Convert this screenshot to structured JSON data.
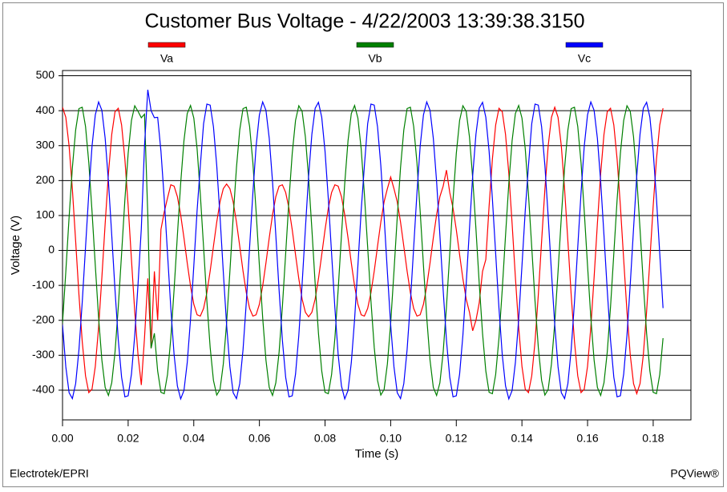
{
  "chart_data": {
    "type": "line",
    "title": "Customer Bus Voltage - 4/22/2003 13:39:38.3150",
    "xlabel": "Time (s)",
    "ylabel": "Voltage (V)",
    "footer_left": "Electrotek/EPRI",
    "footer_right": "PQView®",
    "legend": "top",
    "grid": true,
    "xlim": [
      0,
      0.1915
    ],
    "ylim": [
      -485,
      515
    ],
    "xticks": [
      {
        "value": 0,
        "label": "0.00"
      },
      {
        "value": 0.02,
        "label": "0.02"
      },
      {
        "value": 0.04,
        "label": "0.04"
      },
      {
        "value": 0.06,
        "label": "0.06"
      },
      {
        "value": 0.08,
        "label": "0.08"
      },
      {
        "value": 0.1,
        "label": "0.10"
      },
      {
        "value": 0.12,
        "label": "0.12"
      },
      {
        "value": 0.14,
        "label": "0.14"
      },
      {
        "value": 0.16,
        "label": "0.16"
      },
      {
        "value": 0.18,
        "label": "0.18"
      }
    ],
    "yticks": [
      500,
      400,
      300,
      200,
      100,
      0,
      -100,
      -200,
      -300,
      -400
    ],
    "x": [
      0,
      0.001,
      0.002,
      0.003,
      0.004,
      0.005,
      0.006,
      0.007,
      0.008,
      0.009,
      0.01,
      0.011,
      0.012,
      0.013,
      0.014,
      0.015,
      0.016,
      0.017,
      0.018,
      0.019,
      0.02,
      0.021,
      0.022,
      0.023,
      0.024,
      0.025,
      0.026,
      0.027,
      0.028,
      0.029,
      0.03,
      0.031,
      0.032,
      0.033,
      0.034,
      0.035,
      0.036,
      0.037,
      0.038,
      0.039,
      0.04,
      0.041,
      0.042,
      0.043,
      0.044,
      0.045,
      0.046,
      0.047,
      0.048,
      0.049,
      0.05,
      0.051,
      0.052,
      0.053,
      0.054,
      0.055,
      0.056,
      0.057,
      0.058,
      0.059,
      0.06,
      0.061,
      0.062,
      0.063,
      0.064,
      0.065,
      0.066,
      0.067,
      0.068,
      0.069,
      0.07,
      0.071,
      0.072,
      0.073,
      0.074,
      0.075,
      0.076,
      0.077,
      0.078,
      0.079,
      0.08,
      0.081,
      0.082,
      0.083,
      0.084,
      0.085,
      0.086,
      0.087,
      0.088,
      0.089,
      0.09,
      0.091,
      0.092,
      0.093,
      0.094,
      0.095,
      0.096,
      0.097,
      0.098,
      0.099,
      0.1,
      0.101,
      0.102,
      0.103,
      0.104,
      0.105,
      0.106,
      0.107,
      0.108,
      0.109,
      0.11,
      0.111,
      0.112,
      0.113,
      0.114,
      0.115,
      0.116,
      0.117,
      0.118,
      0.119,
      0.12,
      0.121,
      0.122,
      0.123,
      0.124,
      0.125,
      0.126,
      0.127,
      0.128,
      0.129,
      0.13,
      0.131,
      0.132,
      0.133,
      0.134,
      0.135,
      0.136,
      0.137,
      0.138,
      0.139,
      0.14,
      0.141,
      0.142,
      0.143,
      0.144,
      0.145,
      0.146,
      0.147,
      0.148,
      0.149,
      0.15,
      0.151,
      0.152,
      0.153,
      0.154,
      0.155,
      0.156,
      0.157,
      0.158,
      0.159,
      0.16,
      0.161,
      0.162,
      0.163,
      0.164,
      0.165,
      0.166,
      0.167,
      0.168,
      0.169,
      0.17,
      0.171,
      0.172,
      0.173,
      0.174,
      0.175,
      0.176,
      0.177,
      0.178,
      0.179,
      0.18,
      0.181,
      0.182,
      0.183
    ],
    "series": [
      {
        "name": "Va",
        "color": "#ff0000",
        "values": [
          410,
          381,
          299,
          175,
          26,
          -127,
          -261,
          -359,
          -407,
          -397,
          -332,
          -220,
          -77,
          77,
          220,
          332,
          397,
          407,
          359,
          261,
          127,
          -26,
          -175,
          -299,
          -385,
          -250,
          -80,
          -280,
          -60,
          -200,
          60,
          110,
          150,
          188,
          184,
          154,
          102,
          36,
          -36,
          -102,
          -154,
          -184,
          -188,
          -166,
          -121,
          -59,
          12,
          81,
          139,
          177,
          190,
          177,
          139,
          81,
          12,
          -59,
          -121,
          -166,
          -188,
          -184,
          -154,
          -102,
          -36,
          36,
          102,
          154,
          184,
          188,
          166,
          121,
          59,
          -12,
          -81,
          -139,
          -177,
          -190,
          -177,
          -139,
          -81,
          -12,
          59,
          121,
          166,
          188,
          184,
          154,
          102,
          36,
          -36,
          -102,
          -154,
          -184,
          -188,
          -166,
          -121,
          -59,
          12,
          81,
          139,
          177,
          210,
          177,
          139,
          81,
          12,
          -59,
          -121,
          -166,
          -188,
          -184,
          -154,
          -102,
          -36,
          36,
          102,
          154,
          184,
          230,
          166,
          121,
          59,
          -12,
          -81,
          -139,
          -177,
          -230,
          -200,
          -150,
          -60,
          -26,
          127,
          261,
          359,
          407,
          397,
          332,
          220,
          77,
          -77,
          -220,
          -332,
          -397,
          -407,
          -359,
          -261,
          -127,
          26,
          175,
          299,
          381,
          410,
          381,
          299,
          175,
          26,
          -127,
          -261,
          -359,
          -407,
          -397,
          -332,
          -220,
          -77,
          77,
          220,
          332,
          397,
          407,
          359,
          261,
          127,
          -26,
          -175,
          -299,
          -381,
          -410,
          -381,
          -299,
          -175,
          -26,
          127,
          261,
          359,
          407
        ]
      },
      {
        "name": "Vb",
        "color": "#008000",
        "values": [
          -208,
          -61,
          95,
          237,
          345,
          406,
          410,
          355,
          251,
          112,
          -43,
          -192,
          -314,
          -392,
          -415,
          -379,
          -291,
          -161,
          -9,
          145,
          278,
          372,
          414,
          398,
          380,
          390,
          100,
          -280,
          -237,
          -345,
          -406,
          -410,
          -355,
          -251,
          -112,
          43,
          192,
          314,
          392,
          415,
          379,
          291,
          161,
          9,
          -145,
          -278,
          -372,
          -414,
          -398,
          -325,
          -208,
          -61,
          95,
          237,
          345,
          406,
          410,
          355,
          251,
          112,
          -43,
          -192,
          -314,
          -392,
          -415,
          -379,
          -291,
          -161,
          -9,
          145,
          278,
          372,
          414,
          398,
          325,
          208,
          61,
          -95,
          -237,
          -345,
          -406,
          -410,
          -355,
          -251,
          -112,
          43,
          192,
          314,
          392,
          415,
          379,
          291,
          161,
          9,
          -145,
          -278,
          -372,
          -414,
          -398,
          -325,
          -208,
          -61,
          95,
          237,
          345,
          406,
          410,
          355,
          251,
          112,
          -43,
          -192,
          -314,
          -392,
          -415,
          -379,
          -291,
          -161,
          -9,
          145,
          278,
          372,
          414,
          398,
          325,
          208,
          61,
          -95,
          -237,
          -345,
          -406,
          -410,
          -355,
          -251,
          -112,
          43,
          192,
          314,
          392,
          415,
          379,
          291,
          161,
          9,
          -145,
          -278,
          -372,
          -414,
          -398,
          -325,
          -208,
          -61,
          95,
          237,
          345,
          406,
          410,
          355,
          251,
          112,
          -43,
          -192,
          -314,
          -392,
          -415,
          -379,
          -291,
          -161,
          -9,
          145,
          278,
          372,
          414,
          398,
          325,
          208,
          61,
          -95,
          -237,
          -345,
          -406,
          -410,
          -355,
          -251
        ]
      },
      {
        "name": "Vc",
        "color": "#0000ff",
        "values": [
          -213,
          -333,
          -407,
          -424,
          -381,
          -284,
          -148,
          9,
          165,
          298,
          388,
          425,
          401,
          321,
          197,
          44,
          -114,
          -257,
          -363,
          -419,
          -416,
          -354,
          -243,
          -97,
          62,
          300,
          460,
          400,
          380,
          381,
          284,
          148,
          -9,
          -165,
          -298,
          -388,
          -425,
          -401,
          -321,
          -197,
          -44,
          114,
          242,
          363,
          419,
          416,
          354,
          243,
          97,
          -62,
          -213,
          -333,
          -407,
          -424,
          -381,
          -284,
          -148,
          9,
          165,
          298,
          388,
          425,
          401,
          321,
          197,
          44,
          -114,
          -257,
          -363,
          -419,
          -416,
          -354,
          -243,
          -97,
          62,
          213,
          333,
          407,
          424,
          381,
          284,
          148,
          -9,
          -165,
          -298,
          -388,
          -425,
          -401,
          -321,
          -197,
          -44,
          114,
          242,
          363,
          419,
          416,
          354,
          243,
          97,
          -62,
          -213,
          -333,
          -407,
          -424,
          -381,
          -284,
          -148,
          9,
          165,
          298,
          388,
          425,
          401,
          321,
          197,
          44,
          -114,
          -257,
          -363,
          -419,
          -416,
          -354,
          -243,
          -97,
          62,
          213,
          333,
          407,
          424,
          381,
          284,
          148,
          -9,
          -165,
          -298,
          -388,
          -425,
          -401,
          -321,
          -197,
          -44,
          114,
          242,
          363,
          419,
          416,
          354,
          243,
          97,
          -62,
          -213,
          -333,
          -407,
          -424,
          -381,
          -284,
          -148,
          9,
          165,
          298,
          388,
          425,
          401,
          321,
          197,
          44,
          -114,
          -257,
          -363,
          -419,
          -416,
          -354,
          -243,
          -97,
          62,
          213,
          333,
          407,
          424,
          381,
          284,
          148,
          -9,
          -165
        ]
      }
    ]
  }
}
